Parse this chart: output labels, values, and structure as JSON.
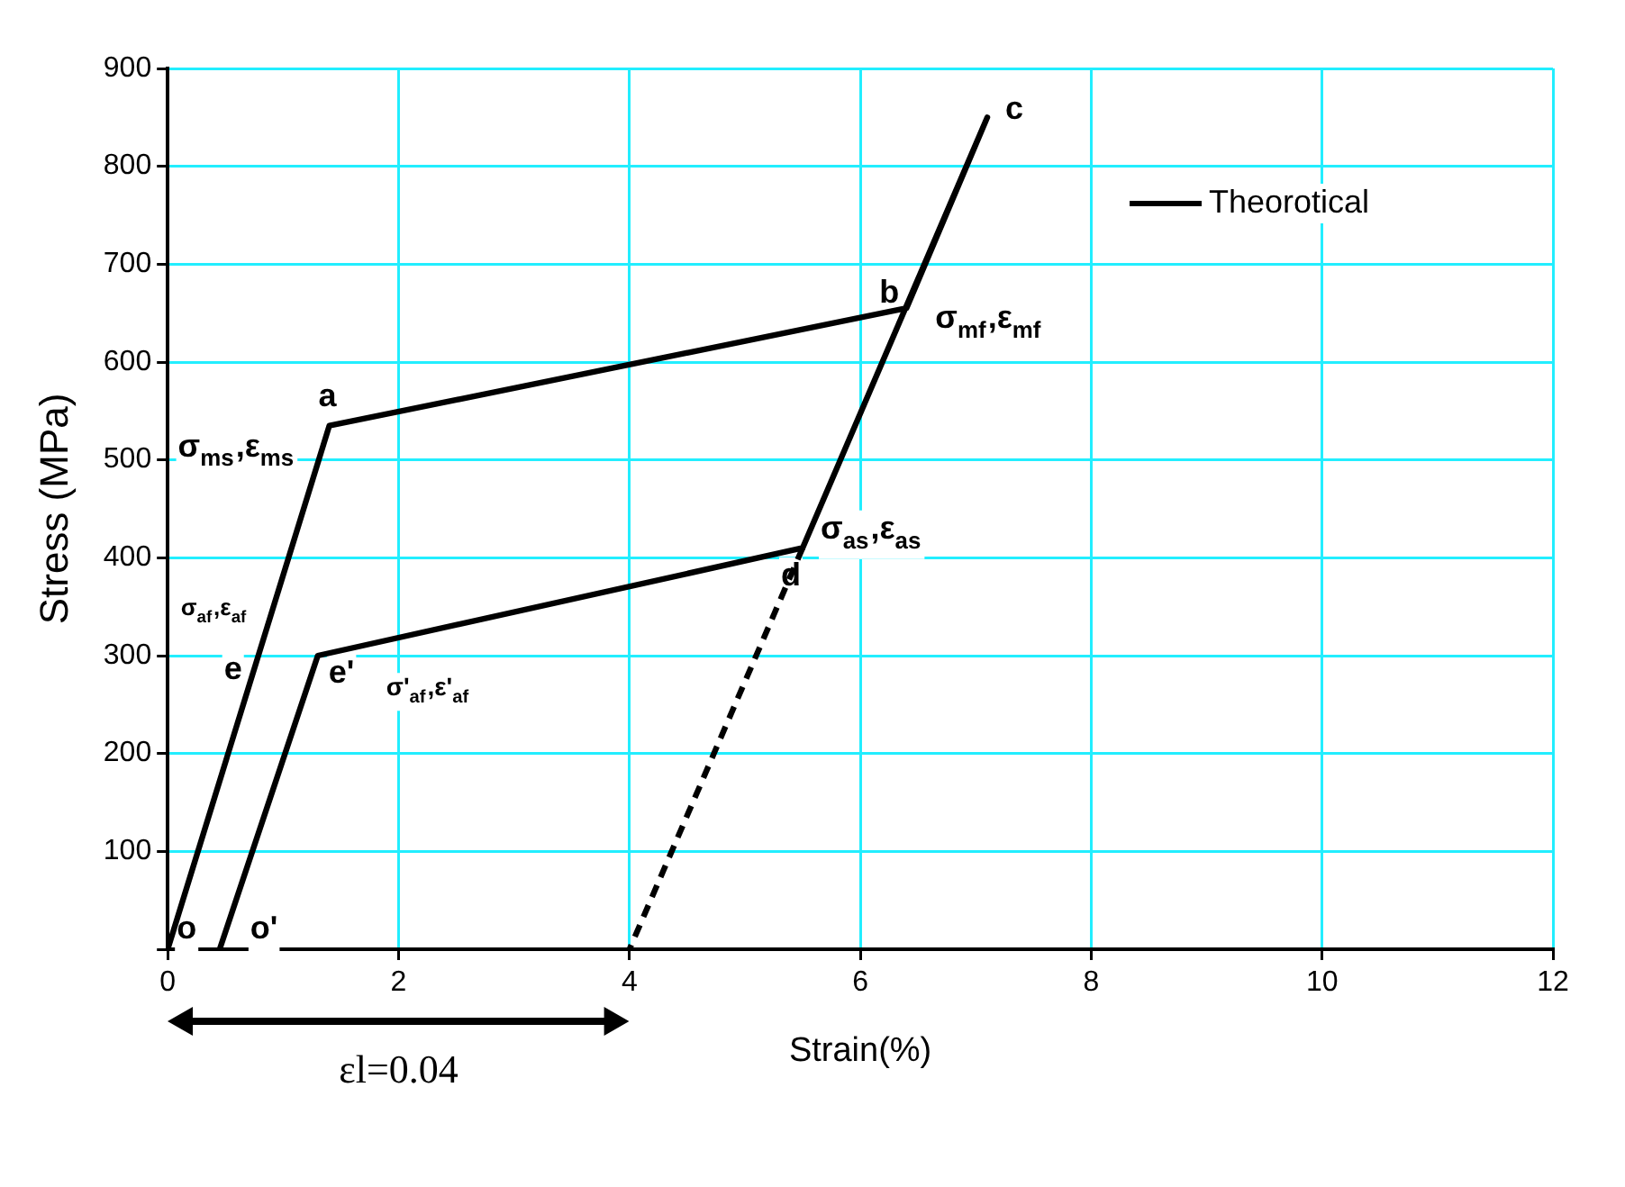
{
  "chart_data": {
    "type": "line",
    "xlabel": "Strain(%)",
    "ylabel": "Stress (MPa)",
    "xlim": [
      0,
      12
    ],
    "xticks": [
      0,
      2,
      4,
      6,
      8,
      10,
      12
    ],
    "ylim": [
      0,
      900
    ],
    "yticks": [
      {
        "value": 0,
        "label": null
      },
      100,
      200,
      300,
      400,
      500,
      600,
      700,
      800,
      900
    ],
    "grid": true,
    "legend": "top right",
    "marker": "none",
    "series": [
      {
        "name": "Theorotical",
        "color": "#000000",
        "x": [
          0,
          1.4,
          6.4,
          7.1,
          5.5,
          1.3,
          0.45
        ],
        "values": [
          0,
          535,
          655,
          850,
          410,
          300,
          0
        ]
      },
      {
        "color": "#000000",
        "line_style": "dashed",
        "x": [
          5.5,
          4
        ],
        "values": [
          410,
          0
        ]
      }
    ],
    "annotations": [
      "εl=0.04",
      {
        "text": "a",
        "x": 1.4,
        "y": 535
      },
      {
        "text": "b",
        "x": 6.4,
        "y": 655
      },
      {
        "text": "c",
        "x": 7.1,
        "y": 850
      },
      {
        "text": "d",
        "x": 5.5,
        "y": 410
      },
      {
        "text": "e",
        "x": 0.8,
        "y": 300
      },
      {
        "text": "e'",
        "x": 1.3,
        "y": 300
      },
      {
        "text": "o",
        "x": 0,
        "y": 0
      },
      {
        "text": "o'",
        "x": 0.45,
        "y": 0
      },
      {
        "text": "σ$_{ms}$,ε$_{ms}$",
        "x": 1.4,
        "y": 535
      },
      {
        "text": "σ$_{mf}$,ε$_{mf}$",
        "x": 6.4,
        "y": 655
      },
      {
        "text": "σ$_{as}$,ε$_{as}$",
        "x": 5.5,
        "y": 410
      },
      {
        "text": "σ$_{af}$,ε$_{af}$",
        "x": 0.8,
        "y": 300
      },
      {
        "text": "σ'$_{af}$,ε'$_{af}$",
        "x": 1.3,
        "y": 300
      }
    ]
  }
}
